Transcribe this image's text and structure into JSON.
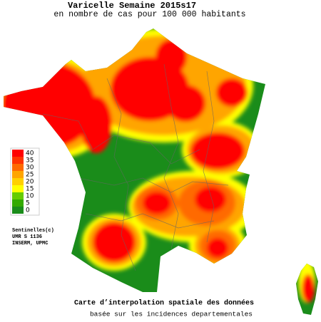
{
  "title": "Varicelle Semaine 2015s17",
  "subtitle": "en nombre de cas pour 100 000 habitants",
  "legend": {
    "items": [
      {
        "label": "40",
        "color": "#ff0000"
      },
      {
        "label": "35",
        "color": "#ff3300"
      },
      {
        "label": "30",
        "color": "#ff6a00"
      },
      {
        "label": "25",
        "color": "#ffa500"
      },
      {
        "label": "20",
        "color": "#ffd000"
      },
      {
        "label": "15",
        "color": "#ffff00"
      },
      {
        "label": "10",
        "color": "#66cc00"
      },
      {
        "label": "5",
        "color": "#33aa00"
      },
      {
        "label": "0",
        "color": "#1a8c1a"
      }
    ]
  },
  "credits": [
    "Sentinelles(c)",
    "UMR S 1136",
    "INSERM, UPMC"
  ],
  "footer": {
    "line1": "Carte d’interpolation spatiale des données",
    "line2": "basée sur les incidences departementales"
  }
}
